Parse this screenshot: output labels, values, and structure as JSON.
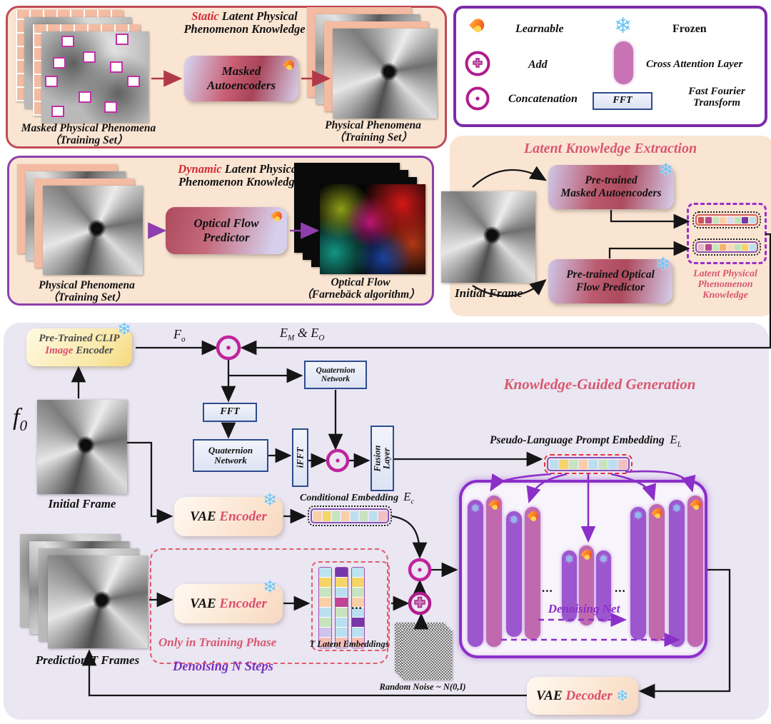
{
  "icons": {
    "snowflake": "❄"
  },
  "legend": {
    "learnable": "Learnable",
    "frozen": "Frozen",
    "add": "Add",
    "cross_attention": "Cross Attention Layer",
    "concatenation": "Concatenation",
    "fft": "FFT",
    "fast_fourier_l1": "Fast Fourier",
    "fast_fourier_l2": "Transform"
  },
  "static_panel": {
    "title_highlight": "Static",
    "title_rest": " Latent Physical Phenomenon Knowledge",
    "box_l1": "Masked",
    "box_l2": "Autoencoders",
    "input_caption": "Masked Physical Phenomena",
    "input_caption2": "（Training Set）",
    "output_caption": "Physical Phenomena",
    "output_caption2": "（Training Set）"
  },
  "dynamic_panel": {
    "title_highlight": "Dynamic",
    "title_rest": " Latent Physical Phenomenon Knowledge",
    "box_l1": "Optical Flow",
    "box_l2": "Predictor",
    "input_caption": "Physical Phenomena",
    "input_caption2": "（Training Set）",
    "output_caption": "Optical Flow",
    "output_caption2": "（Farnebäck algorithm）"
  },
  "extraction": {
    "title": "Latent Knowledge Extraction",
    "initial_frame": "Initial Frame",
    "mae_box_l1": "Pre-trained",
    "mae_box_l2": "Masked Autoencoders",
    "ofp_box_l1": "Pre-trained Optical",
    "ofp_box_l2": "Flow Predictor",
    "knowledge_l1": "Latent Physical",
    "knowledge_l2": "Phenomenon",
    "knowledge_l3": "Knowledge"
  },
  "generation": {
    "title": "Knowledge-Guided Generation",
    "clip_l1": "Pre-Trained CLIP",
    "clip_l2_red": "Image",
    "clip_l2_rest": " Encoder",
    "label_fo_base": "F",
    "label_fo_sub": "o",
    "label_em_base": "E",
    "label_em_sub": "M",
    "label_amp": " & ",
    "label_eo_base": "E",
    "label_eo_sub": "O",
    "label_f0_base": "f",
    "label_f0_sub": "0",
    "initial_frame": "Initial Frame",
    "fft": "FFT",
    "quaternion_l1": "Quaternion",
    "quaternion_l2": "Network",
    "ifft": "iFFT",
    "fusion_l1": "Fusion",
    "fusion_l2": "Layer",
    "pseudo_label": "Pseudo-Language Prompt Embedding",
    "el_base": "E",
    "el_sub": "L",
    "vae": "VAE",
    "encoder": "Encoder",
    "decoder": "Decoder",
    "conditional_label": "Conditional Embedding",
    "ec_base": "E",
    "ec_sub": "c",
    "only_training": "Only in Training Phase",
    "t_latent": "T Latent Embeddings",
    "prediction": "Prediction T Frames",
    "denoising_steps": "Denoising N Steps",
    "random_noise": "Random Noise ~ N(0,I)",
    "denoising_net": "Denoising Net",
    "dots": "..."
  },
  "strips": {
    "e_m": [
      "#C9545C",
      "#B8478F",
      "#C7E4BE",
      "#F9CFA8",
      "#DCD9F2",
      "#BFE3BC",
      "#7638A8",
      "#BCDFF0"
    ],
    "e_o": [
      "#E3B8CE",
      "#B8478F",
      "#C7E4BE",
      "#F5B36B",
      "#F9D9B8",
      "#BFE3BC",
      "#F5D468",
      "#BCDFF0"
    ],
    "e_l": [
      "#BCDFF0",
      "#F5D468",
      "#C7E4BE",
      "#F9CFA8",
      "#BCDFF0",
      "#C7E4BE",
      "#BCDFF0",
      "#EFC0C4"
    ],
    "e_c": [
      "#F9CFA8",
      "#F5D468",
      "#C7E4BE",
      "#F9CFA8",
      "#BCDFF0",
      "#C7E4BE",
      "#BCDFF0",
      "#EFC0C4"
    ],
    "t_latent_cols": [
      [
        "#BCE4EE",
        "#F5D468",
        "#C7E4BE",
        "#F9CFA8",
        "#BCDFF0",
        "#C7E4BE",
        "#CFC3EC",
        "#F2BDB5"
      ],
      [
        "#7638A8",
        "#F5D468",
        "#BCDFF0",
        "#C04593",
        "#C7E4BE",
        "#BCDFF0",
        "#BCDFF0",
        "#F2BDB5"
      ],
      [
        "#BCE4EE",
        "#F5D468",
        "#C7E4BE",
        "#F9CFA8",
        "#BCDFF0",
        "#7638A8",
        "#BCDFF0",
        "#F2BDB5"
      ]
    ]
  }
}
